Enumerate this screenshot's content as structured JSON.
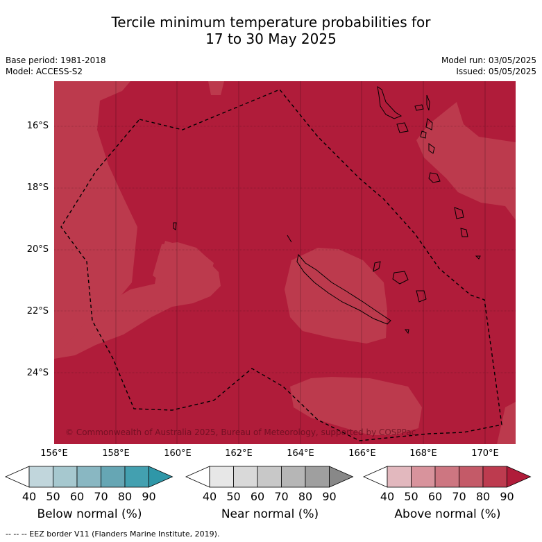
{
  "title_line1": "Tercile minimum temperature probabilities for",
  "title_line2": "17 to 30 May 2025",
  "base_period": "Base period: 1981-2018",
  "model": "Model: ACCESS-S2",
  "model_run": "Model run: 03/05/2025",
  "issued": "Issued: 05/05/2025",
  "lat_labels": [
    "16°S",
    "18°S",
    "20°S",
    "22°S",
    "24°S"
  ],
  "lon_labels": [
    "156°E",
    "158°E",
    "160°E",
    "162°E",
    "164°E",
    "166°E",
    "168°E",
    "170°E"
  ],
  "copyright": "© Commonwealth of Australia 2025, Bureau of Meteorology, supported by COSPPac",
  "colorbars": [
    {
      "title": "Below normal (%)",
      "ticks": [
        "40",
        "50",
        "60",
        "70",
        "80",
        "90"
      ],
      "colors": [
        "#ffffff",
        "#c1d6dc",
        "#a6c8cf",
        "#89b7c2",
        "#66a6b4",
        "#43a0b0",
        "#2f97a8"
      ]
    },
    {
      "title": "Near normal (%)",
      "ticks": [
        "40",
        "50",
        "60",
        "70",
        "80",
        "90"
      ],
      "colors": [
        "#ffffff",
        "#e7e7e7",
        "#d9d9d9",
        "#c8c8c8",
        "#b6b6b6",
        "#9f9f9f",
        "#888888"
      ]
    },
    {
      "title": "Above normal (%)",
      "ticks": [
        "40",
        "50",
        "60",
        "70",
        "80",
        "90"
      ],
      "colors": [
        "#ffffff",
        "#e2b8be",
        "#d8939c",
        "#cd7681",
        "#c45a68",
        "#bd3b4f",
        "#b01c3a"
      ]
    }
  ],
  "map_colors": {
    "above_80": "#b01c3a",
    "above_70": "#bc3a4d",
    "coast": "#000000"
  },
  "footer": "--  --  -- EEZ border V11 (Flanders Marine Institute, 2019)."
}
